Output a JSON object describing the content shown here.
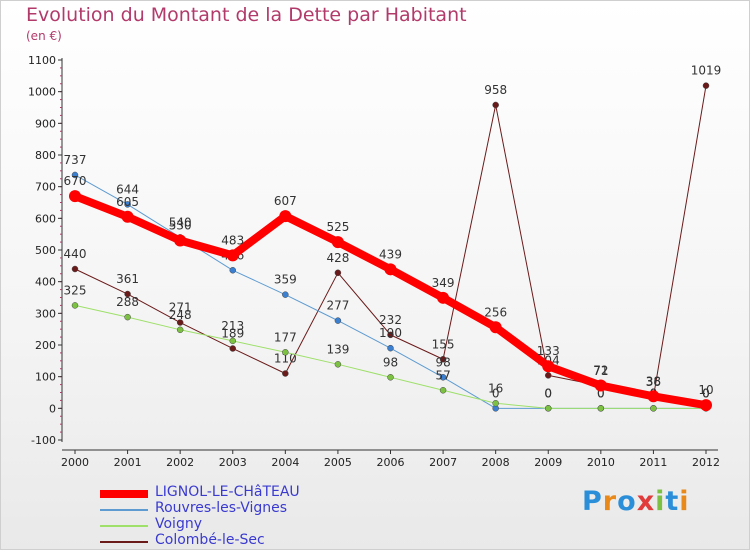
{
  "header": {
    "title": "Evolution du Montant de la Dette par Habitant",
    "unit": "(en €)"
  },
  "logo": {
    "text": "Proxiti",
    "colors": [
      "#2a8fd8",
      "#e8891a",
      "#2a8fd8",
      "#e23b3b",
      "#7cc142",
      "#2a8fd8",
      "#e8891a"
    ]
  },
  "chart_data": {
    "type": "line",
    "title": "Evolution du Montant de la Dette par Habitant",
    "ylabel": "(en €)",
    "xlabel": "",
    "ylim": [
      -100,
      1100
    ],
    "yticks": [
      -100,
      0,
      100,
      200,
      300,
      400,
      500,
      600,
      700,
      800,
      900,
      1000,
      1100
    ],
    "grid": false,
    "legend": "bottom-left",
    "x": [
      "2000",
      "2001",
      "2002",
      "2003",
      "2004",
      "2005",
      "2006",
      "2007",
      "2008",
      "2009",
      "2010",
      "2011",
      "2012"
    ],
    "series": [
      {
        "name": "Colombé-le-Sec",
        "color": "#6b1a1a",
        "marker": "#6b1a1a",
        "width": 1,
        "values": [
          440,
          361,
          271,
          189,
          110,
          428,
          232,
          155,
          958,
          104,
          71,
          36,
          1019
        ],
        "labels": [
          "440",
          "361",
          "271",
          "189",
          "110",
          "428",
          "232",
          "155",
          "958",
          "104",
          "71",
          "36",
          "1019"
        ]
      },
      {
        "name": "Rouvres-les-Vignes",
        "color": "#5d9bd1",
        "marker": "#3a7fd0",
        "width": 1,
        "values": [
          737,
          644,
          540,
          436,
          359,
          277,
          190,
          98,
          0,
          0,
          0,
          0,
          0
        ],
        "labels": [
          "737",
          "644",
          "540",
          "436",
          "359",
          "277",
          "190",
          "98",
          "0",
          "0",
          "0",
          "0",
          "0"
        ]
      },
      {
        "name": "Voigny",
        "color": "#9ee06a",
        "marker": "#7cc142",
        "width": 1,
        "values": [
          325,
          288,
          248,
          213,
          177,
          139,
          98,
          57,
          16,
          0,
          0,
          0,
          0
        ],
        "labels": [
          "325",
          "288",
          "248",
          "213",
          "177",
          "139",
          "98",
          "57",
          "16",
          "0",
          "0",
          "0",
          "0"
        ]
      },
      {
        "name": "LIGNOL-LE-CHâTEAU",
        "color": "#ff0000",
        "marker": "#ff0000",
        "width": 8,
        "values": [
          670,
          605,
          530,
          483,
          607,
          525,
          439,
          349,
          256,
          133,
          72,
          38,
          10
        ],
        "labels": [
          "670",
          "605",
          "530",
          "483",
          "607",
          "525",
          "439",
          "349",
          "256",
          "133",
          "72",
          "38",
          "10"
        ]
      }
    ]
  },
  "legend": {
    "items": [
      {
        "label": "LIGNOL-LE-CHâTEAU",
        "color": "#ff0000",
        "thickness": 8
      },
      {
        "label": "Rouvres-les-Vignes",
        "color": "#5d9bd1",
        "thickness": 2
      },
      {
        "label": "Voigny",
        "color": "#9ee06a",
        "thickness": 2
      },
      {
        "label": "Colombé-le-Sec",
        "color": "#6b1a1a",
        "thickness": 2
      }
    ]
  }
}
